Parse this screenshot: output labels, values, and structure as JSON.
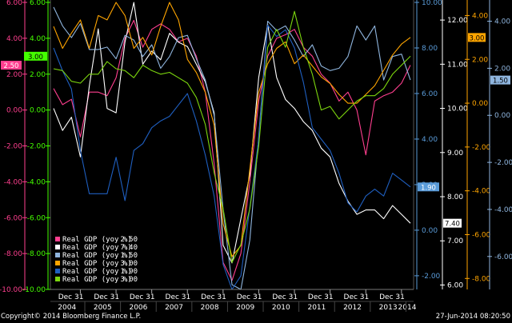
{
  "chart_data": {
    "type": "line",
    "x_tick_labels": [
      "Dec 31",
      "Dec 31",
      "Dec 31",
      "Dec 31",
      "Dec 31",
      "Dec 31",
      "Dec 31",
      "Dec 31",
      "Dec 31",
      "Dec 31"
    ],
    "x_year_labels": [
      "2004",
      "2005",
      "2006",
      "2007",
      "2008",
      "2009",
      "2010",
      "2011",
      "2012",
      "2013",
      "2014"
    ],
    "x_periods": [
      "2004Q1",
      "2004Q2",
      "2004Q3",
      "2004Q4",
      "2005Q1",
      "2005Q2",
      "2005Q3",
      "2005Q4",
      "2006Q1",
      "2006Q2",
      "2006Q3",
      "2006Q4",
      "2007Q1",
      "2007Q2",
      "2007Q3",
      "2007Q4",
      "2008Q1",
      "2008Q2",
      "2008Q3",
      "2008Q4",
      "2009Q1",
      "2009Q2",
      "2009Q3",
      "2009Q4",
      "2010Q1",
      "2010Q2",
      "2010Q3",
      "2010Q4",
      "2011Q1",
      "2011Q2",
      "2011Q3",
      "2011Q4",
      "2012Q1",
      "2012Q2",
      "2012Q3",
      "2012Q4",
      "2013Q1",
      "2013Q2",
      "2013Q3",
      "2013Q4",
      "2014Q1"
    ],
    "axes": [
      {
        "id": "a1",
        "color": "#ff3f8f",
        "ticks": [
          "6.00",
          "4.00",
          "2.00",
          "0.00",
          "-2.00",
          "-4.00",
          "-6.00",
          "-8.00",
          "-10.00"
        ],
        "range": [
          -10,
          6
        ],
        "last_tag": "2.50"
      },
      {
        "id": "a2",
        "color": "#44ff00",
        "ticks": [
          "6.00",
          "4.00",
          "2.00",
          "0.00",
          "-2.00",
          "-4.00",
          "-6.00",
          "-8.00",
          "-10.00"
        ],
        "range": [
          -10,
          6
        ],
        "last_tag": "3.00"
      },
      {
        "id": "a3",
        "color": "#5a9bd8",
        "ticks": [
          "10.00",
          "8.00",
          "6.00",
          "4.00",
          "2.00",
          "0.00",
          "-2.00"
        ],
        "range": [
          -2.6,
          10
        ],
        "last_tag": "1.90"
      },
      {
        "id": "a4",
        "color": "#ffffff",
        "ticks": [
          "12.00",
          "11.00",
          "10.00",
          "9.00",
          "8.00",
          "7.00",
          "6.00"
        ],
        "range": [
          5.9,
          12.4
        ],
        "last_tag": "7.40"
      },
      {
        "id": "a5",
        "color": "#ffa500",
        "ticks": [
          "4.00",
          "2.00",
          "0.00",
          "-2.00",
          "-4.00",
          "-6.00",
          "-8.00"
        ],
        "range": [
          -8.5,
          4.6
        ],
        "last_tag": "3.00"
      },
      {
        "id": "a6",
        "color": "#8fb5de",
        "ticks": [
          "4.00",
          "2.00",
          "0.00",
          "-2.00",
          "-4.00",
          "-6.00"
        ],
        "range": [
          -7.4,
          4.8
        ],
        "last_tag": "1.50"
      }
    ],
    "series": [
      {
        "name": "Real GDP (yoy %)",
        "last": "2.50",
        "color": "#ff3f8f",
        "axis": "a1",
        "values": [
          1.2,
          0.3,
          0.6,
          -1.5,
          1.0,
          1.0,
          0.8,
          1.8,
          4.0,
          5.0,
          3.5,
          4.5,
          4.8,
          4.5,
          3.8,
          4.0,
          3.0,
          1.0,
          -3.0,
          -8.5,
          -9.5,
          -8.0,
          -4.0,
          0.5,
          3.0,
          4.0,
          4.2,
          4.5,
          3.5,
          3.0,
          2.0,
          1.5,
          0.5,
          1.0,
          0.0,
          -2.5,
          0.5,
          0.8,
          1.0,
          1.5,
          2.5
        ]
      },
      {
        "name": "Real GDP (yoy %)",
        "last": "7.40",
        "color": "#ffffff",
        "axis": "a4",
        "values": [
          10.0,
          9.5,
          9.8,
          8.9,
          10.5,
          11.8,
          10.0,
          9.9,
          11.5,
          12.4,
          11.0,
          11.3,
          11.1,
          11.7,
          11.5,
          11.4,
          11.0,
          10.6,
          9.9,
          6.9,
          6.5,
          7.5,
          8.5,
          10.7,
          11.9,
          10.7,
          10.2,
          10.0,
          9.7,
          9.5,
          9.1,
          8.9,
          8.3,
          7.9,
          7.6,
          7.7,
          7.7,
          7.5,
          7.8,
          7.6,
          7.4
        ]
      },
      {
        "name": "Real GDP (yoy %)",
        "last": "1.50",
        "color": "#8fb5de",
        "axis": "a6",
        "values": [
          4.6,
          3.8,
          3.3,
          3.9,
          2.8,
          2.8,
          2.9,
          2.4,
          3.4,
          3.2,
          2.5,
          3.0,
          2.0,
          2.5,
          3.3,
          3.4,
          2.4,
          1.5,
          0.0,
          -4.0,
          -7.2,
          -7.4,
          -5.3,
          -0.9,
          4.0,
          3.6,
          3.8,
          3.2,
          2.5,
          3.0,
          2.1,
          1.9,
          2.0,
          2.5,
          3.8,
          3.2,
          3.8,
          1.5,
          2.5,
          2.6,
          1.5
        ]
      },
      {
        "name": "Real GDP (yoy %)",
        "last": "3.00",
        "color": "#ffa500",
        "axis": "a5",
        "values": [
          3.5,
          2.5,
          3.2,
          3.8,
          2.5,
          4.0,
          3.8,
          4.6,
          4.0,
          2.5,
          3.0,
          2.2,
          3.5,
          4.6,
          3.8,
          2.0,
          1.4,
          0.5,
          -1.0,
          -5.5,
          -7.0,
          -6.5,
          -3.0,
          0.5,
          1.8,
          2.5,
          2.8,
          1.8,
          2.2,
          1.7,
          1.2,
          0.9,
          0.4,
          0.0,
          0.0,
          0.4,
          0.8,
          1.5,
          2.2,
          2.7,
          3.0
        ]
      },
      {
        "name": "Real GDP (yoy %)",
        "last": "1.90",
        "color": "#1f5fc0",
        "axis": "a3",
        "values": [
          8.0,
          7.0,
          6.2,
          3.5,
          1.6,
          1.6,
          1.6,
          3.2,
          1.3,
          3.5,
          3.8,
          4.5,
          4.8,
          5.0,
          5.5,
          6.0,
          4.8,
          3.3,
          1.5,
          -1.5,
          -2.6,
          -2.0,
          1.0,
          4.0,
          9.0,
          8.5,
          8.8,
          8.0,
          6.5,
          4.5,
          4.0,
          3.5,
          2.5,
          1.2,
          0.8,
          1.5,
          1.8,
          1.5,
          2.5,
          2.2,
          1.9
        ]
      },
      {
        "name": "Real GDP (yoy %)",
        "last": "3.00",
        "color": "#7cd60e",
        "axis": "a2",
        "values": [
          2.3,
          2.2,
          1.6,
          1.5,
          2.0,
          2.0,
          2.7,
          2.3,
          2.2,
          1.8,
          2.5,
          2.2,
          2.0,
          2.1,
          1.8,
          1.5,
          0.7,
          -0.8,
          -3.5,
          -5.5,
          -8.5,
          -7.5,
          -5.5,
          -2.0,
          3.5,
          4.5,
          3.5,
          5.5,
          3.5,
          2.0,
          0.0,
          0.2,
          -0.5,
          0.0,
          0.5,
          0.8,
          0.8,
          1.2,
          2.0,
          2.5,
          3.0
        ]
      }
    ]
  },
  "footer": {
    "copyright": "Copyright© 2014 Bloomberg Finance L.P.",
    "timestamp": "27-Jun-2014 08:20:50"
  }
}
